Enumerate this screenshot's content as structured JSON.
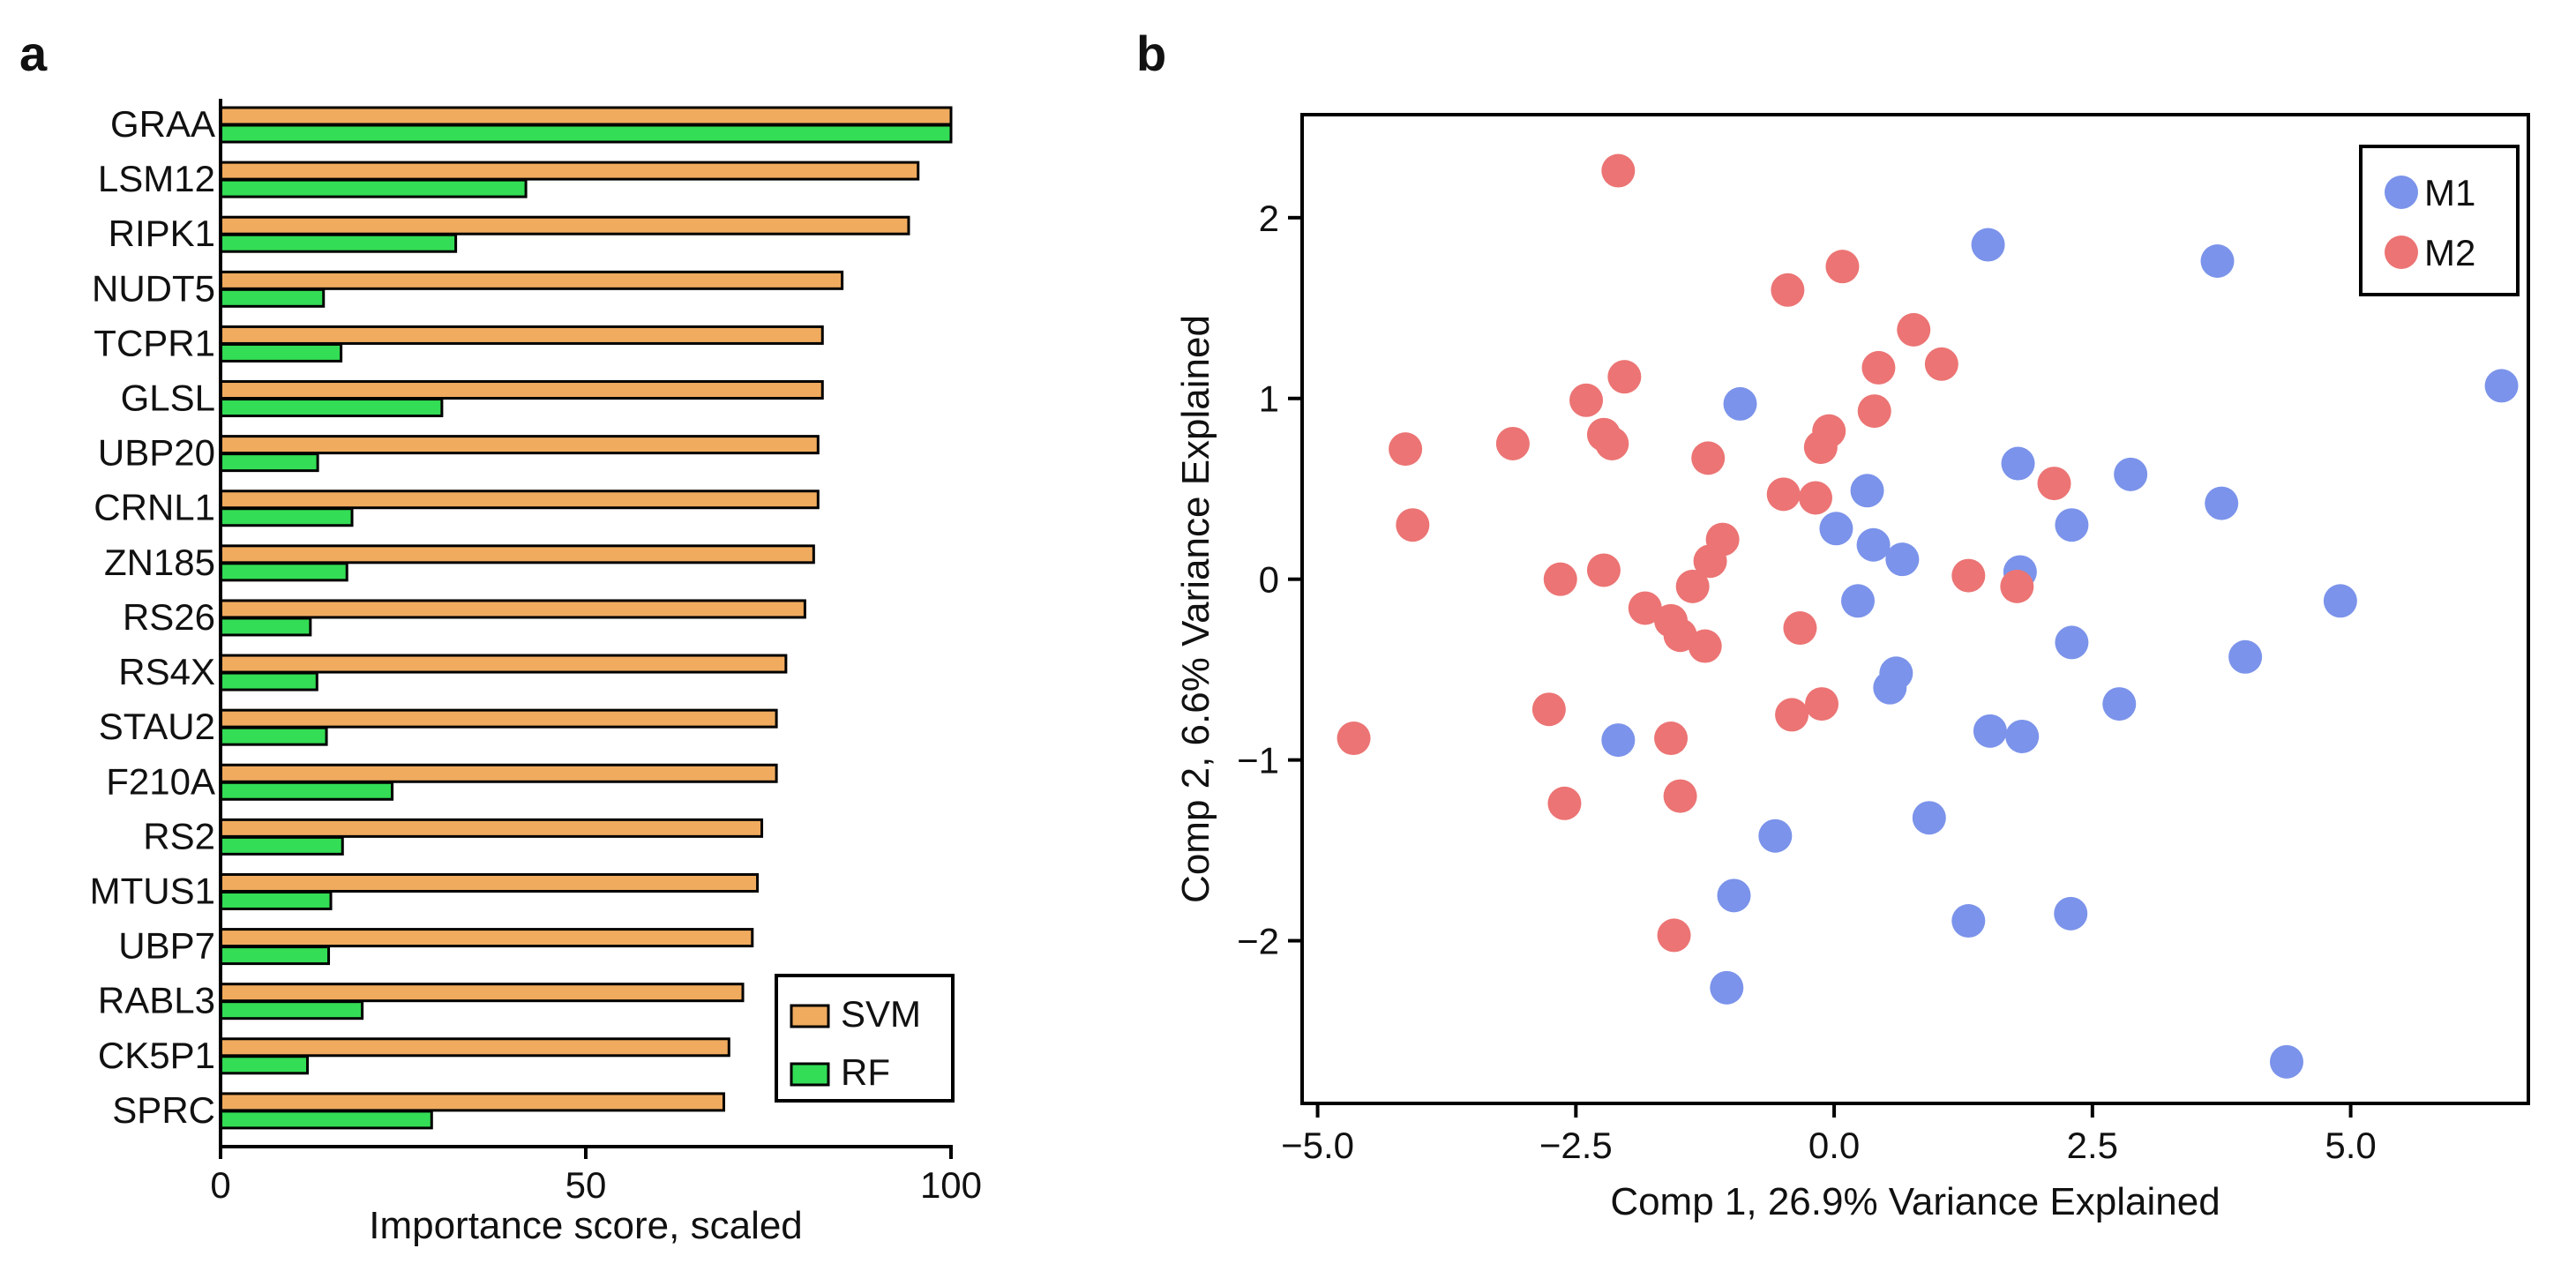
{
  "chart_data": [
    {
      "panel": "a",
      "type": "bar",
      "orientation": "horizontal",
      "categories": [
        "GRAA",
        "LSM12",
        "RIPK1",
        "NUDT5",
        "TCPR1",
        "GLSL",
        "UBP20",
        "CRNL1",
        "ZN185",
        "RS26",
        "RS4X",
        "STAU2",
        "F210A",
        "RS2",
        "MTUS1",
        "UBP7",
        "RABL3",
        "CK5P1",
        "SPRC"
      ],
      "series": [
        {
          "name": "SVM",
          "color": "#f0ab5e",
          "values": [
            100,
            95.5,
            94.2,
            85.1,
            82.4,
            82.4,
            81.8,
            81.8,
            81.2,
            80.0,
            77.4,
            76.1,
            76.1,
            74.1,
            73.5,
            72.8,
            71.5,
            69.6,
            68.9
          ]
        },
        {
          "name": "RF",
          "color": "#33dd55",
          "values": [
            100,
            41.8,
            32.2,
            14.1,
            16.5,
            30.3,
            13.3,
            18.0,
            17.3,
            12.3,
            13.2,
            14.5,
            23.5,
            16.7,
            15.1,
            14.8,
            19.4,
            11.9,
            28.9
          ]
        }
      ],
      "xlabel": "Importance score, scaled",
      "xlim": [
        0,
        100
      ],
      "xticks": [
        "0",
        "50",
        "100"
      ],
      "legend": {
        "position": "bottom-right",
        "entries": [
          "SVM",
          "RF"
        ]
      }
    },
    {
      "panel": "b",
      "type": "scatter",
      "xlabel": "Comp 1, 26.9% Variance Explained",
      "ylabel": "Comp 2, 6.6% Variance Explained",
      "xlim": [
        -5.15,
        6.72
      ],
      "ylim": [
        -2.9,
        2.57
      ],
      "xticks": [
        "−5.0",
        "−2.5",
        "0.0",
        "2.5",
        "5.0"
      ],
      "yticks": [
        "2",
        "1",
        "0",
        "−1",
        "−2"
      ],
      "legend": {
        "position": "top-right",
        "entries": [
          "M1",
          "M2"
        ]
      },
      "series": [
        {
          "name": "M1",
          "color": "#7b93ea",
          "points": [
            [
              1.49,
              1.85
            ],
            [
              3.71,
              1.76
            ],
            [
              6.46,
              1.07
            ],
            [
              -0.91,
              0.97
            ],
            [
              1.78,
              0.64
            ],
            [
              2.87,
              0.58
            ],
            [
              3.75,
              0.42
            ],
            [
              0.32,
              0.49
            ],
            [
              0.02,
              0.28
            ],
            [
              2.3,
              0.3
            ],
            [
              0.38,
              0.19
            ],
            [
              0.66,
              0.11
            ],
            [
              1.8,
              0.04
            ],
            [
              0.23,
              -0.12
            ],
            [
              4.9,
              -0.12
            ],
            [
              2.3,
              -0.35
            ],
            [
              3.98,
              -0.43
            ],
            [
              0.6,
              -0.52
            ],
            [
              0.54,
              -0.6
            ],
            [
              2.76,
              -0.69
            ],
            [
              1.51,
              -0.84
            ],
            [
              1.82,
              -0.87
            ],
            [
              -2.09,
              -0.89
            ],
            [
              0.92,
              -1.32
            ],
            [
              -0.57,
              -1.42
            ],
            [
              -0.97,
              -1.75
            ],
            [
              1.3,
              -1.89
            ],
            [
              2.29,
              -1.85
            ],
            [
              -1.04,
              -2.26
            ],
            [
              4.38,
              -2.67
            ]
          ]
        },
        {
          "name": "M2",
          "color": "#ec7474",
          "points": [
            [
              -2.09,
              2.26
            ],
            [
              0.08,
              1.73
            ],
            [
              -0.45,
              1.6
            ],
            [
              0.77,
              1.38
            ],
            [
              1.04,
              1.19
            ],
            [
              0.43,
              1.17
            ],
            [
              -2.03,
              1.12
            ],
            [
              -2.4,
              0.99
            ],
            [
              0.39,
              0.93
            ],
            [
              -4.15,
              0.72
            ],
            [
              -3.11,
              0.75
            ],
            [
              -2.23,
              0.8
            ],
            [
              -2.15,
              0.75
            ],
            [
              -0.05,
              0.82
            ],
            [
              -0.13,
              0.73
            ],
            [
              -1.22,
              0.67
            ],
            [
              2.13,
              0.53
            ],
            [
              -0.49,
              0.47
            ],
            [
              -0.18,
              0.45
            ],
            [
              -4.08,
              0.3
            ],
            [
              -1.08,
              0.22
            ],
            [
              -1.2,
              0.1
            ],
            [
              -2.65,
              0.0
            ],
            [
              -2.23,
              0.05
            ],
            [
              1.3,
              0.02
            ],
            [
              1.77,
              -0.04
            ],
            [
              -1.37,
              -0.04
            ],
            [
              -1.83,
              -0.16
            ],
            [
              -1.58,
              -0.23
            ],
            [
              -1.49,
              -0.31
            ],
            [
              -1.25,
              -0.37
            ],
            [
              -0.33,
              -0.27
            ],
            [
              -2.76,
              -0.72
            ],
            [
              -0.41,
              -0.75
            ],
            [
              -0.12,
              -0.69
            ],
            [
              -4.65,
              -0.88
            ],
            [
              -1.58,
              -0.88
            ],
            [
              -2.61,
              -1.24
            ],
            [
              -1.49,
              -1.2
            ],
            [
              -1.55,
              -1.97
            ]
          ]
        }
      ]
    }
  ],
  "panels": {
    "a": "a",
    "b": "b"
  }
}
